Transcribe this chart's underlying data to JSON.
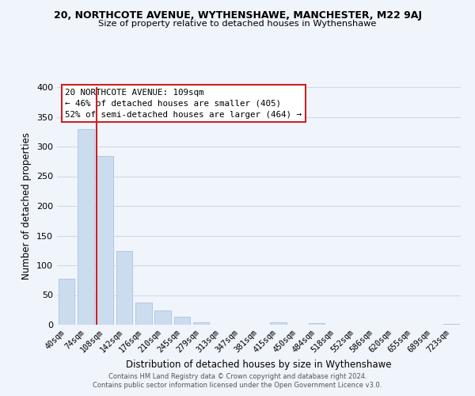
{
  "title": "20, NORTHCOTE AVENUE, WYTHENSHAWE, MANCHESTER, M22 9AJ",
  "subtitle": "Size of property relative to detached houses in Wythenshawe",
  "xlabel": "Distribution of detached houses by size in Wythenshawe",
  "ylabel": "Number of detached properties",
  "bar_labels": [
    "40sqm",
    "74sqm",
    "108sqm",
    "142sqm",
    "176sqm",
    "210sqm",
    "245sqm",
    "279sqm",
    "313sqm",
    "347sqm",
    "381sqm",
    "415sqm",
    "450sqm",
    "484sqm",
    "518sqm",
    "552sqm",
    "586sqm",
    "620sqm",
    "655sqm",
    "689sqm",
    "723sqm"
  ],
  "bar_values": [
    78,
    330,
    284,
    124,
    37,
    24,
    14,
    4,
    0,
    0,
    0,
    4,
    0,
    3,
    0,
    0,
    0,
    0,
    0,
    0,
    2
  ],
  "bar_color": "#ccdcef",
  "bar_edge_color": "#a8c4e0",
  "highlight_bar_index": 2,
  "vline_color": "#cc2222",
  "ylim": [
    0,
    400
  ],
  "yticks": [
    0,
    50,
    100,
    150,
    200,
    250,
    300,
    350,
    400
  ],
  "annotation_title": "20 NORTHCOTE AVENUE: 109sqm",
  "annotation_line1": "← 46% of detached houses are smaller (405)",
  "annotation_line2": "52% of semi-detached houses are larger (464) →",
  "bg_color": "#f0f4fb",
  "grid_color": "#d0daea",
  "footer_line1": "Contains HM Land Registry data © Crown copyright and database right 2024.",
  "footer_line2": "Contains public sector information licensed under the Open Government Licence v3.0."
}
